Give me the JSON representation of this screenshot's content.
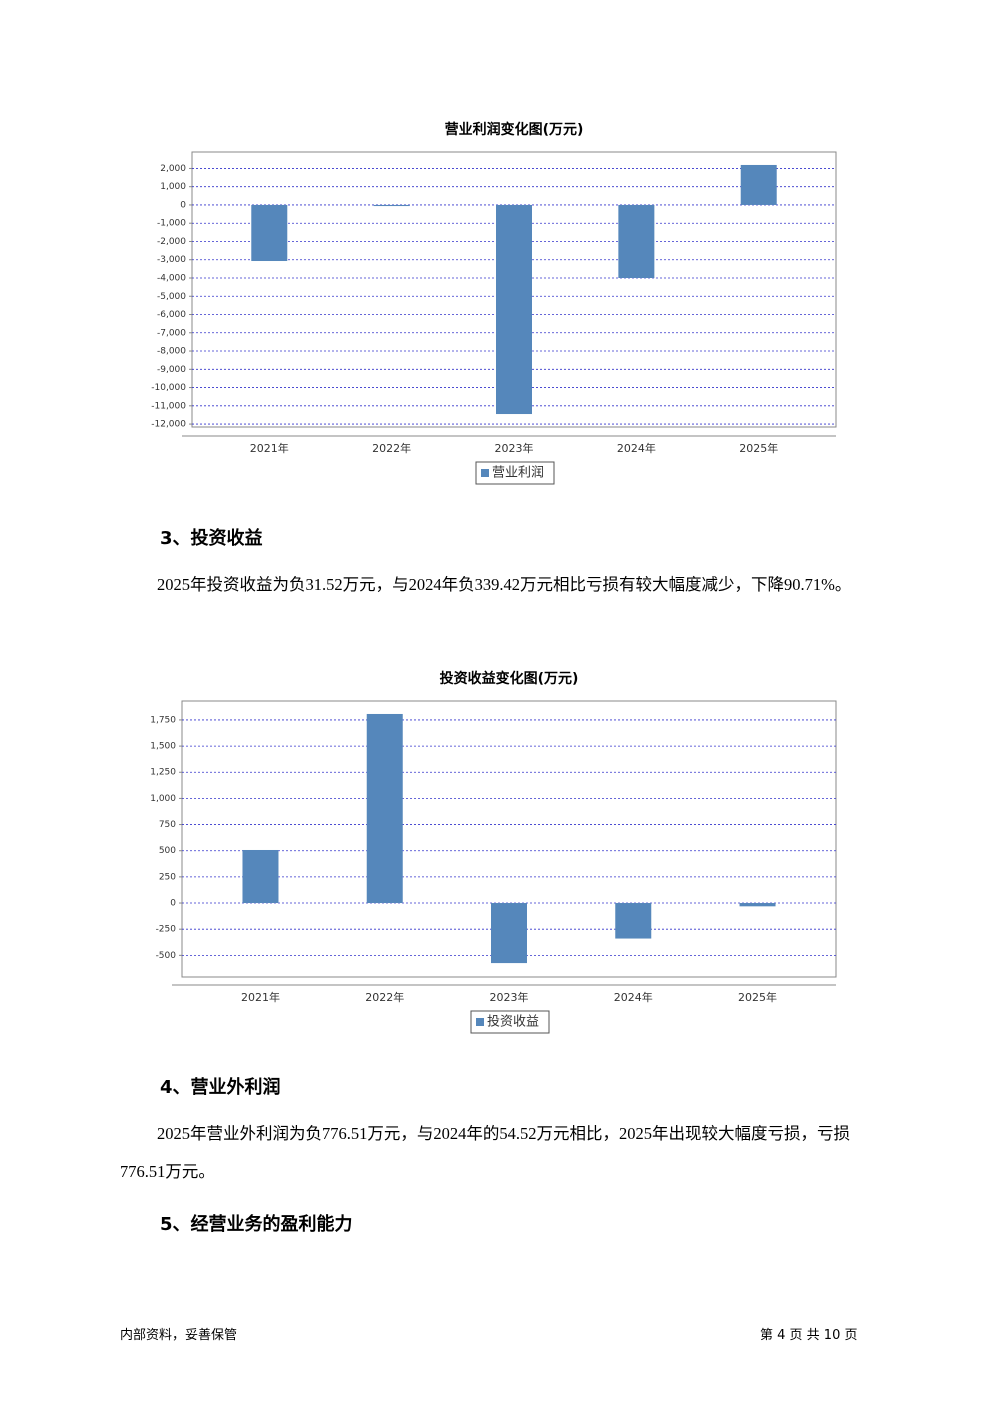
{
  "chart_data": [
    {
      "type": "bar",
      "title": "营业利润变化图(万元)",
      "categories": [
        "2021年",
        "2022年",
        "2023年",
        "2024年",
        "2025年"
      ],
      "series": [
        {
          "name": "营业利润",
          "color": "#5587bb",
          "values": [
            -3070,
            -60,
            -11450,
            -4000,
            2190
          ]
        }
      ],
      "ylim": [
        -12160,
        2900
      ],
      "yticks": [
        {
          "value": 2000,
          "label": "2,000"
        },
        {
          "value": 1000,
          "label": "1,000"
        },
        0,
        {
          "value": -1000,
          "label": "-1,000"
        },
        {
          "value": -2000,
          "label": "-2,000"
        },
        {
          "value": -3000,
          "label": "-3,000"
        },
        {
          "value": -4000,
          "label": "-4,000"
        },
        {
          "value": -5000,
          "label": "-5,000"
        },
        {
          "value": -6000,
          "label": "-6,000"
        },
        {
          "value": -7000,
          "label": "-7,000"
        },
        {
          "value": -8000,
          "label": "-8,000"
        },
        {
          "value": -9000,
          "label": "-9,000"
        },
        {
          "value": -10000,
          "label": "-10,000"
        },
        {
          "value": -11000,
          "label": "-11,000"
        },
        {
          "value": -12000,
          "label": "-12,000"
        }
      ],
      "grid": true
    },
    {
      "type": "bar",
      "title": "投资收益变化图(万元)",
      "categories": [
        "2021年",
        "2022年",
        "2023年",
        "2024年",
        "2025年"
      ],
      "series": [
        {
          "name": "投资收益",
          "color": "#5587bb",
          "values": [
            507,
            1807,
            -574,
            -339.42,
            -31.52
          ]
        }
      ],
      "ylim": [
        -707,
        1931
      ],
      "yticks": [
        {
          "value": 1750,
          "label": "1,750"
        },
        {
          "value": 1500,
          "label": "1,500"
        },
        {
          "value": 1250,
          "label": "1,250"
        },
        {
          "value": 1000,
          "label": "1,000"
        },
        750,
        500,
        250,
        0,
        -250,
        -500
      ],
      "grid": true
    }
  ],
  "sections": [
    {
      "heading": "3、投资收益",
      "text": "2025年投资收益为负31.52万元，与2024年负339.42万元相比亏损有较大幅度减少，下降90.71%。"
    },
    {
      "heading": "4、营业外利润",
      "text": "2025年营业外利润为负776.51万元，与2024年的54.52万元相比，2025年出现较大幅度亏损，亏损776.51万元。"
    },
    {
      "heading": "5、经营业务的盈利能力"
    }
  ],
  "footer": {
    "left": "内部资料，妥善保管",
    "right": "第 4 页  共 10 页"
  }
}
